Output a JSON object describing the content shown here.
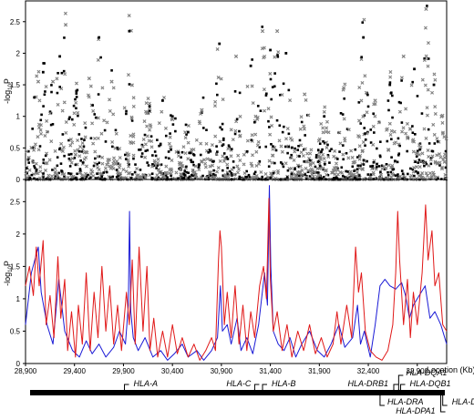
{
  "chart_data": [
    {
      "type": "scatter",
      "panel": "top",
      "ylabel": "-log10P",
      "ylabel_parts": {
        "base": "-log",
        "sub": "10",
        "tail": "P"
      },
      "ylim": [
        0,
        2.8
      ],
      "yticks": [
        "0",
        "0.5",
        "1",
        "1.5",
        "2",
        "2.5"
      ],
      "ytick_values": [
        0,
        0.5,
        1,
        1.5,
        2,
        2.5
      ],
      "xlim": [
        28900,
        33200
      ],
      "grid": false,
      "series": [
        {
          "marker": "filled-square",
          "color": "#000000"
        },
        {
          "marker": "cross",
          "color": "#808080"
        }
      ],
      "peaks": [
        {
          "x": 28990,
          "y": 1.3
        },
        {
          "x": 29030,
          "y": 1.55
        },
        {
          "x": 29080,
          "y": 1.7
        },
        {
          "x": 29180,
          "y": 1.55
        },
        {
          "x": 29250,
          "y": 1.95
        },
        {
          "x": 29310,
          "y": 2.45
        },
        {
          "x": 29420,
          "y": 1.4
        },
        {
          "x": 29550,
          "y": 1.6
        },
        {
          "x": 29650,
          "y": 2.25
        },
        {
          "x": 29780,
          "y": 1.55
        },
        {
          "x": 29960,
          "y": 2.35
        },
        {
          "x": 30150,
          "y": 1.05
        },
        {
          "x": 30300,
          "y": 1.25
        },
        {
          "x": 30400,
          "y": 0.95
        },
        {
          "x": 30560,
          "y": 0.75
        },
        {
          "x": 30700,
          "y": 1.1
        },
        {
          "x": 30880,
          "y": 2.15
        },
        {
          "x": 31050,
          "y": 1.95
        },
        {
          "x": 31200,
          "y": 1.8
        },
        {
          "x": 31320,
          "y": 2.35
        },
        {
          "x": 31400,
          "y": 2.05
        },
        {
          "x": 31470,
          "y": 2.35
        },
        {
          "x": 31560,
          "y": 2.0
        },
        {
          "x": 31750,
          "y": 1.35
        },
        {
          "x": 31950,
          "y": 1.0
        },
        {
          "x": 32150,
          "y": 1.45
        },
        {
          "x": 32350,
          "y": 2.25
        },
        {
          "x": 32470,
          "y": 1.25
        },
        {
          "x": 32620,
          "y": 1.5
        },
        {
          "x": 32760,
          "y": 1.95
        },
        {
          "x": 32870,
          "y": 1.75
        },
        {
          "x": 32990,
          "y": 2.7
        },
        {
          "x": 33070,
          "y": 1.5
        },
        {
          "x": 33150,
          "y": 1.0
        }
      ]
    },
    {
      "type": "line",
      "panel": "bottom",
      "ylabel": "-log10P",
      "ylabel_parts": {
        "base": "-log",
        "sub": "10",
        "tail": "P"
      },
      "xlabel": "Location (Kb)",
      "ylim": [
        0,
        2.8
      ],
      "yticks": [
        "0",
        "0.5",
        "1",
        "1.5",
        "2",
        "2.5"
      ],
      "ytick_values": [
        0,
        0.5,
        1,
        1.5,
        2,
        2.5
      ],
      "xlim": [
        28900,
        33200
      ],
      "xticks": [
        "28,900",
        "29,400",
        "29,900",
        "30,400",
        "30,900",
        "31,400",
        "31,900",
        "32,400",
        "32,900"
      ],
      "xtick_values": [
        28900,
        29400,
        29900,
        30400,
        30900,
        31400,
        31900,
        32400,
        32900
      ],
      "grid": false,
      "series": [
        {
          "color": "#1a1ad6",
          "points": [
            [
              28900,
              0.6
            ],
            [
              28960,
              1.4
            ],
            [
              29030,
              1.8
            ],
            [
              29060,
              1.1
            ],
            [
              29120,
              0.6
            ],
            [
              29180,
              0.3
            ],
            [
              29240,
              1.3
            ],
            [
              29300,
              0.5
            ],
            [
              29380,
              0.2
            ],
            [
              29450,
              0.1
            ],
            [
              29520,
              0.35
            ],
            [
              29580,
              0.15
            ],
            [
              29650,
              0.3
            ],
            [
              29720,
              0.1
            ],
            [
              29800,
              0.25
            ],
            [
              29860,
              0.5
            ],
            [
              29920,
              0.3
            ],
            [
              29950,
              0.9
            ],
            [
              29962,
              2.35
            ],
            [
              29975,
              0.8
            ],
            [
              30000,
              0.4
            ],
            [
              30050,
              0.2
            ],
            [
              30120,
              0.4
            ],
            [
              30200,
              0.1
            ],
            [
              30280,
              0.2
            ],
            [
              30350,
              0.05
            ],
            [
              30420,
              0.15
            ],
            [
              30500,
              0.3
            ],
            [
              30560,
              0.1
            ],
            [
              30650,
              0.2
            ],
            [
              30720,
              0.05
            ],
            [
              30800,
              0.2
            ],
            [
              30860,
              0.4
            ],
            [
              30890,
              1.2
            ],
            [
              30910,
              0.5
            ],
            [
              30960,
              0.6
            ],
            [
              31000,
              0.3
            ],
            [
              31060,
              0.7
            ],
            [
              31100,
              0.2
            ],
            [
              31160,
              0.4
            ],
            [
              31220,
              0.15
            ],
            [
              31280,
              0.6
            ],
            [
              31340,
              1.4
            ],
            [
              31370,
              0.9
            ],
            [
              31390,
              2.75
            ],
            [
              31405,
              1.5
            ],
            [
              31430,
              0.5
            ],
            [
              31480,
              0.3
            ],
            [
              31540,
              0.2
            ],
            [
              31600,
              0.4
            ],
            [
              31660,
              0.1
            ],
            [
              31720,
              0.3
            ],
            [
              31800,
              0.5
            ],
            [
              31880,
              0.2
            ],
            [
              31950,
              0.1
            ],
            [
              32020,
              0.3
            ],
            [
              32100,
              0.6
            ],
            [
              32160,
              0.25
            ],
            [
              32240,
              0.4
            ],
            [
              32290,
              0.9
            ],
            [
              32320,
              0.3
            ],
            [
              32360,
              0.5
            ],
            [
              32420,
              0.1
            ],
            [
              32470,
              0.6
            ],
            [
              32520,
              1.2
            ],
            [
              32570,
              1.3
            ],
            [
              32620,
              1.2
            ],
            [
              32680,
              1.15
            ],
            [
              32740,
              1.25
            ],
            [
              32780,
              1.05
            ],
            [
              32820,
              0.7
            ],
            [
              32860,
              0.9
            ],
            [
              32920,
              1.05
            ],
            [
              32980,
              1.2
            ],
            [
              33030,
              0.7
            ],
            [
              33080,
              0.8
            ],
            [
              33140,
              0.6
            ],
            [
              33200,
              0.3
            ]
          ]
        },
        {
          "color": "#e01818",
          "points": [
            [
              28900,
              1.2
            ],
            [
              28940,
              1.5
            ],
            [
              28980,
              1.05
            ],
            [
              29010,
              1.8
            ],
            [
              29040,
              1.2
            ],
            [
              29080,
              1.9
            ],
            [
              29110,
              0.6
            ],
            [
              29150,
              1.05
            ],
            [
              29190,
              0.4
            ],
            [
              29230,
              1.65
            ],
            [
              29260,
              0.7
            ],
            [
              29300,
              1.3
            ],
            [
              29330,
              0.2
            ],
            [
              29370,
              0.8
            ],
            [
              29410,
              0.1
            ],
            [
              29440,
              0.9
            ],
            [
              29480,
              0.3
            ],
            [
              29520,
              1.4
            ],
            [
              29560,
              0.2
            ],
            [
              29600,
              1.1
            ],
            [
              29640,
              0.4
            ],
            [
              29680,
              1.5
            ],
            [
              29720,
              0.5
            ],
            [
              29760,
              1.2
            ],
            [
              29800,
              0.3
            ],
            [
              29840,
              0.9
            ],
            [
              29880,
              0.2
            ],
            [
              29930,
              1.1
            ],
            [
              29960,
              0.6
            ],
            [
              29990,
              1.6
            ],
            [
              30020,
              0.3
            ],
            [
              30060,
              1.8
            ],
            [
              30100,
              0.5
            ],
            [
              30140,
              1.5
            ],
            [
              30170,
              0.2
            ],
            [
              30210,
              0.7
            ],
            [
              30250,
              0.1
            ],
            [
              30300,
              0.5
            ],
            [
              30350,
              0.1
            ],
            [
              30400,
              0.6
            ],
            [
              30450,
              0.15
            ],
            [
              30500,
              0.4
            ],
            [
              30560,
              0.1
            ],
            [
              30620,
              0.3
            ],
            [
              30680,
              0.05
            ],
            [
              30740,
              0.2
            ],
            [
              30800,
              0.4
            ],
            [
              30840,
              0.2
            ],
            [
              30870,
              1.6
            ],
            [
              30885,
              2.05
            ],
            [
              30900,
              1.8
            ],
            [
              30930,
              0.6
            ],
            [
              30960,
              1.1
            ],
            [
              31000,
              0.4
            ],
            [
              31040,
              1.2
            ],
            [
              31080,
              0.3
            ],
            [
              31120,
              0.9
            ],
            [
              31160,
              0.2
            ],
            [
              31200,
              0.8
            ],
            [
              31240,
              0.4
            ],
            [
              31290,
              1.2
            ],
            [
              31330,
              1.5
            ],
            [
              31360,
              1.0
            ],
            [
              31385,
              2.55
            ],
            [
              31400,
              1.3
            ],
            [
              31430,
              0.5
            ],
            [
              31470,
              0.8
            ],
            [
              31520,
              0.2
            ],
            [
              31570,
              0.6
            ],
            [
              31620,
              0.1
            ],
            [
              31680,
              0.5
            ],
            [
              31740,
              0.2
            ],
            [
              31800,
              0.6
            ],
            [
              31860,
              0.15
            ],
            [
              31920,
              0.4
            ],
            [
              31980,
              0.1
            ],
            [
              32040,
              0.3
            ],
            [
              32080,
              0.8
            ],
            [
              32120,
              0.3
            ],
            [
              32180,
              0.9
            ],
            [
              32230,
              0.4
            ],
            [
              32270,
              1.8
            ],
            [
              32300,
              1.1
            ],
            [
              32330,
              1.4
            ],
            [
              32370,
              0.5
            ],
            [
              32420,
              0.2
            ],
            [
              32480,
              0.1
            ],
            [
              32540,
              0.05
            ],
            [
              32600,
              0.2
            ],
            [
              32650,
              0.6
            ],
            [
              32680,
              1.4
            ],
            [
              32700,
              2.35
            ],
            [
              32720,
              1.6
            ],
            [
              32760,
              0.6
            ],
            [
              32800,
              1.3
            ],
            [
              32830,
              0.4
            ],
            [
              32860,
              1.1
            ],
            [
              32900,
              0.6
            ],
            [
              32950,
              1.4
            ],
            [
              32985,
              2.45
            ],
            [
              33010,
              1.6
            ],
            [
              33050,
              2.05
            ],
            [
              33080,
              1.2
            ],
            [
              33120,
              1.4
            ],
            [
              33160,
              0.6
            ],
            [
              33200,
              0.5
            ]
          ]
        }
      ]
    }
  ],
  "gene_map": {
    "genes": [
      {
        "name": "HLA-A",
        "x": 29910
      },
      {
        "name": "HLA-C",
        "x": 31240
      },
      {
        "name": "HLA-B",
        "x": 31320
      },
      {
        "name": "HLA-DRB1",
        "x": 32660
      },
      {
        "name": "HLA-DQA1",
        "x": 32710
      },
      {
        "name": "HLA-DQB1",
        "x": 32730
      },
      {
        "name": "HLA-DRA",
        "x": 32520
      },
      {
        "name": "HLA-DPA1",
        "x": 33140
      },
      {
        "name": "HLA-DPB1",
        "x": 33160
      }
    ]
  }
}
